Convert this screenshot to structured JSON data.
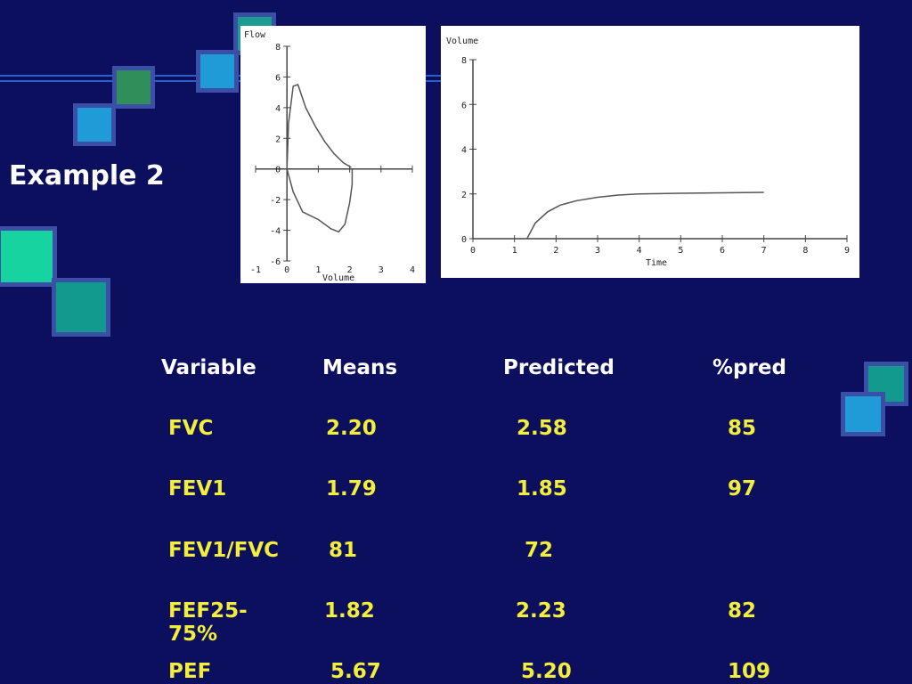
{
  "slide": {
    "title": "Example 2",
    "colors": {
      "background": "#0c0f5e",
      "header_text": "#ffffff",
      "cell_text": "#f2ee3a"
    }
  },
  "flow_volume_plot": {
    "type": "line",
    "ylabel": "Flow",
    "xlabel": "Volume",
    "xlim": [
      -1,
      4
    ],
    "ylim": [
      -6,
      8
    ],
    "x_ticks": [
      "-1",
      "0",
      "1",
      "2",
      "3",
      "4"
    ],
    "y_ticks": [
      "8",
      "6",
      "4",
      "2",
      "0",
      "-2",
      "-4",
      "-6"
    ],
    "series": [
      {
        "points": [
          [
            0,
            0
          ],
          [
            0.05,
            3
          ],
          [
            0.2,
            5.4
          ],
          [
            0.35,
            5.5
          ],
          [
            0.6,
            4
          ],
          [
            0.9,
            2.8
          ],
          [
            1.2,
            1.8
          ],
          [
            1.5,
            1
          ],
          [
            1.8,
            0.4
          ],
          [
            2.05,
            0.1
          ]
        ]
      },
      {
        "points": [
          [
            0,
            0
          ],
          [
            0.2,
            -1.5
          ],
          [
            0.5,
            -2.8
          ],
          [
            1.0,
            -3.3
          ],
          [
            1.4,
            -3.9
          ],
          [
            1.65,
            -4.1
          ],
          [
            1.85,
            -3.6
          ],
          [
            2.0,
            -2.2
          ],
          [
            2.08,
            -1
          ],
          [
            2.08,
            0
          ]
        ]
      }
    ]
  },
  "volume_time_plot": {
    "type": "line",
    "ylabel": "Volume",
    "xlabel": "Time",
    "xlim": [
      0,
      9
    ],
    "ylim": [
      0,
      8
    ],
    "x_ticks": [
      "0",
      "1",
      "2",
      "3",
      "4",
      "5",
      "6",
      "7",
      "8",
      "9"
    ],
    "y_ticks": [
      "8",
      "6",
      "4",
      "2",
      "0"
    ],
    "series": [
      {
        "points": [
          [
            1.3,
            0
          ],
          [
            1.5,
            0.7
          ],
          [
            1.8,
            1.2
          ],
          [
            2.1,
            1.5
          ],
          [
            2.5,
            1.7
          ],
          [
            3,
            1.85
          ],
          [
            3.5,
            1.95
          ],
          [
            4,
            2.0
          ],
          [
            5,
            2.03
          ],
          [
            6,
            2.05
          ],
          [
            7,
            2.07
          ]
        ]
      }
    ]
  },
  "table": {
    "headers": [
      "Variable",
      "Means",
      "Predicted",
      "%pred"
    ],
    "rows": [
      [
        "FVC",
        "2.20",
        "2.58",
        "85"
      ],
      [
        "FEV1",
        "1.79",
        "1.85",
        "97"
      ],
      [
        "FEV1/FVC",
        "81",
        "72",
        ""
      ],
      [
        "FEF25-75%",
        "1.82",
        "2.23",
        "82"
      ],
      [
        "PEF",
        "5.67",
        "5.20",
        "109"
      ]
    ]
  }
}
